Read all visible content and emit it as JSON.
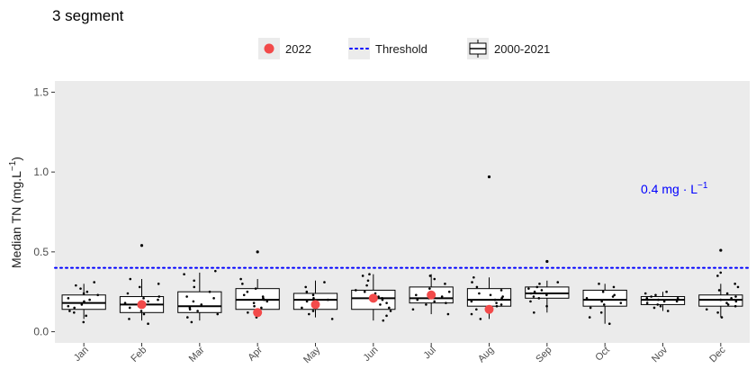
{
  "chart_data": {
    "type": "box",
    "title": "3 segment",
    "ylabel_base": "Median TN (mg.L",
    "ylabel_sup": "−1",
    "ylabel_tail": ")",
    "xlabel": "",
    "ylim": [
      -0.07,
      1.57
    ],
    "y_ticks": [
      0.0,
      0.5,
      1.0,
      1.5
    ],
    "y_tick_labels": [
      "0.0",
      "0.5",
      "1.0",
      "1.5"
    ],
    "grid": false,
    "categories": [
      "Jan",
      "Feb",
      "Mar",
      "Apr",
      "May",
      "Jun",
      "Jul",
      "Aug",
      "Sep",
      "Oct",
      "Nov",
      "Dec"
    ],
    "legend": {
      "position": "top",
      "items": [
        {
          "kind": "point",
          "label": "2022",
          "color": "#f24a4a"
        },
        {
          "kind": "dotted-line",
          "label": "Threshold",
          "color": "#0000ff"
        },
        {
          "kind": "box",
          "label": "2000-2021",
          "color": "#000000"
        }
      ]
    },
    "threshold": {
      "value": 0.4,
      "label_base": "0.4 mg · L",
      "label_sup": "−1",
      "color": "#0000ff"
    },
    "box_series": {
      "name": "2000-2021",
      "boxes": [
        {
          "min": 0.08,
          "q1": 0.14,
          "median": 0.18,
          "q3": 0.23,
          "max": 0.3
        },
        {
          "min": 0.07,
          "q1": 0.12,
          "median": 0.17,
          "q3": 0.22,
          "max": 0.33
        },
        {
          "min": 0.07,
          "q1": 0.12,
          "median": 0.16,
          "q3": 0.25,
          "max": 0.37
        },
        {
          "min": 0.1,
          "q1": 0.14,
          "median": 0.2,
          "q3": 0.27,
          "max": 0.33
        },
        {
          "min": 0.09,
          "q1": 0.14,
          "median": 0.2,
          "q3": 0.24,
          "max": 0.32
        },
        {
          "min": 0.07,
          "q1": 0.14,
          "median": 0.21,
          "q3": 0.26,
          "max": 0.36
        },
        {
          "min": 0.11,
          "q1": 0.18,
          "median": 0.21,
          "q3": 0.28,
          "max": 0.36
        },
        {
          "min": 0.08,
          "q1": 0.16,
          "median": 0.2,
          "q3": 0.27,
          "max": 0.34
        },
        {
          "min": 0.12,
          "q1": 0.21,
          "median": 0.24,
          "q3": 0.28,
          "max": 0.32
        },
        {
          "min": 0.05,
          "q1": 0.16,
          "median": 0.2,
          "q3": 0.26,
          "max": 0.3
        },
        {
          "min": 0.13,
          "q1": 0.17,
          "median": 0.2,
          "q3": 0.22,
          "max": 0.25
        },
        {
          "min": 0.09,
          "q1": 0.16,
          "median": 0.2,
          "q3": 0.23,
          "max": 0.3
        }
      ]
    },
    "outliers": [
      {
        "category": "Feb",
        "value": 0.54
      },
      {
        "category": "Apr",
        "value": 0.5
      },
      {
        "category": "Aug",
        "value": 0.97
      },
      {
        "category": "Sep",
        "value": 0.44
      },
      {
        "category": "Dec",
        "value": 0.51
      }
    ],
    "jitter_points": [
      {
        "category": "Jan",
        "values": [
          0.06,
          0.1,
          0.13,
          0.15,
          0.17,
          0.19,
          0.21,
          0.23,
          0.25,
          0.27,
          0.29,
          0.31,
          0.2,
          0.16,
          0.24,
          0.12
        ]
      },
      {
        "category": "Feb",
        "values": [
          0.05,
          0.08,
          0.11,
          0.13,
          0.15,
          0.18,
          0.2,
          0.22,
          0.24,
          0.28,
          0.3,
          0.33,
          0.16,
          0.21,
          0.19
        ]
      },
      {
        "category": "Mar",
        "values": [
          0.06,
          0.09,
          0.11,
          0.13,
          0.15,
          0.17,
          0.19,
          0.22,
          0.25,
          0.28,
          0.32,
          0.36,
          0.38,
          0.14,
          0.21
        ]
      },
      {
        "category": "Apr",
        "values": [
          0.09,
          0.12,
          0.15,
          0.18,
          0.19,
          0.21,
          0.23,
          0.25,
          0.27,
          0.3,
          0.33,
          0.16,
          0.2,
          0.22
        ]
      },
      {
        "category": "May",
        "values": [
          0.08,
          0.11,
          0.13,
          0.16,
          0.18,
          0.2,
          0.21,
          0.23,
          0.25,
          0.28,
          0.31,
          0.15,
          0.19
        ]
      },
      {
        "category": "Jun",
        "values": [
          0.07,
          0.1,
          0.13,
          0.15,
          0.18,
          0.2,
          0.22,
          0.24,
          0.26,
          0.29,
          0.32,
          0.35,
          0.36,
          0.17,
          0.21,
          0.25
        ]
      },
      {
        "category": "Jul",
        "values": [
          0.11,
          0.14,
          0.17,
          0.19,
          0.21,
          0.23,
          0.25,
          0.27,
          0.3,
          0.33,
          0.35,
          0.2,
          0.22,
          0.18
        ]
      },
      {
        "category": "Aug",
        "values": [
          0.08,
          0.11,
          0.14,
          0.16,
          0.18,
          0.2,
          0.22,
          0.24,
          0.26,
          0.28,
          0.31,
          0.34,
          0.19,
          0.23,
          0.17,
          0.21
        ]
      },
      {
        "category": "Sep",
        "values": [
          0.12,
          0.16,
          0.19,
          0.21,
          0.23,
          0.24,
          0.26,
          0.28,
          0.3,
          0.31,
          0.22,
          0.25,
          0.27
        ]
      },
      {
        "category": "Oct",
        "values": [
          0.05,
          0.09,
          0.12,
          0.15,
          0.17,
          0.19,
          0.21,
          0.23,
          0.25,
          0.28,
          0.3,
          0.18,
          0.22
        ]
      },
      {
        "category": "Nov",
        "values": [
          0.13,
          0.15,
          0.17,
          0.18,
          0.19,
          0.2,
          0.21,
          0.22,
          0.23,
          0.24,
          0.25,
          0.16,
          0.2,
          0.19,
          0.21
        ]
      },
      {
        "category": "Dec",
        "values": [
          0.09,
          0.12,
          0.14,
          0.16,
          0.18,
          0.2,
          0.22,
          0.24,
          0.26,
          0.28,
          0.3,
          0.35,
          0.37,
          0.17,
          0.21,
          0.19
        ]
      }
    ],
    "series_2022": {
      "name": "2022",
      "points": [
        {
          "category": "Feb",
          "value": 0.17
        },
        {
          "category": "Apr",
          "value": 0.12
        },
        {
          "category": "May",
          "value": 0.17
        },
        {
          "category": "Jun",
          "value": 0.21
        },
        {
          "category": "Jul",
          "value": 0.23
        },
        {
          "category": "Aug",
          "value": 0.14
        }
      ]
    },
    "colors": {
      "panel_background": "#ebebeb",
      "box_fill": "#ffffff",
      "box_stroke": "#000000",
      "point_2022": "#f24a4a",
      "threshold": "#0000ff",
      "legend_key_background": "#ebebeb",
      "jitter": "#000000"
    }
  }
}
